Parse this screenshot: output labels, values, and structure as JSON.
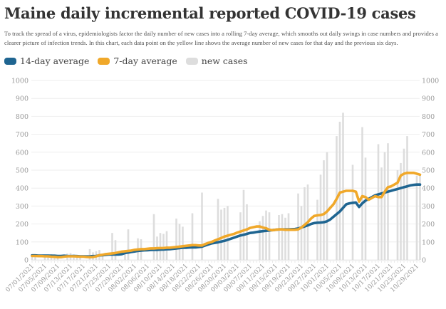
{
  "chart_data": {
    "type": "line",
    "title": "Maine daily incremental reported COVID-19 cases",
    "subtitle": "To track the spread of a virus, epidemiologists factor the daily number of new cases into a rolling 7-day average, which smooths out daily swings in case numbers and provides a clearer picture of infection trends. In this chart, each data point on the yellow line shows the average number of new cases for that day and the previous six days.",
    "xlabel": "",
    "ylabel": "",
    "ylim": [
      0,
      1000
    ],
    "yticks": [
      0,
      100,
      200,
      300,
      400,
      500,
      600,
      700,
      800,
      900,
      1000
    ],
    "grid": true,
    "legend_position": "top-left",
    "x_start": "07/01/2021",
    "x_end": "10/30/2021",
    "xtick_labels": [
      "07/01/2021",
      "07/05/2021",
      "07/09/2021",
      "07/13/2021",
      "07/17/2021",
      "07/21/2021",
      "07/25/2021",
      "07/29/2021",
      "08/02/2021",
      "08/06/2021",
      "08/10/2021",
      "08/14/2021",
      "08/18/2021",
      "08/22/2021",
      "08/26/2021",
      "08/30/2021",
      "09/03/2021",
      "09/07/2021",
      "09/11/2021",
      "09/15/2021",
      "09/19/2021",
      "09/23/2021",
      "09/27/2021",
      "10/01/2021",
      "10/05/2021",
      "10/09/2021",
      "10/13/2021",
      "10/17/2021",
      "10/21/2021",
      "10/25/2021",
      "10/29/2021"
    ],
    "series": [
      {
        "name": "14-day average",
        "color": "#1f6591",
        "kind": "line",
        "values": [
          25,
          25,
          24,
          24,
          24,
          24,
          23,
          23,
          22,
          22,
          23,
          22,
          21,
          22,
          21,
          20,
          20,
          19,
          20,
          21,
          22,
          25,
          26,
          28,
          30,
          30,
          30,
          30,
          32,
          38,
          41,
          44,
          47,
          50,
          52,
          53,
          54,
          55,
          56,
          56,
          57,
          58,
          59,
          60,
          62,
          64,
          66,
          68,
          68,
          69,
          70,
          70,
          72,
          74,
          80,
          86,
          92,
          95,
          98,
          102,
          106,
          112,
          118,
          124,
          130,
          136,
          140,
          145,
          150,
          152,
          155,
          158,
          160,
          162,
          164,
          166,
          168,
          170,
          170,
          170,
          170,
          171,
          172,
          175,
          180,
          186,
          192,
          200,
          205,
          207,
          208,
          210,
          215,
          225,
          240,
          255,
          270,
          290,
          310,
          315,
          318,
          320,
          295,
          315,
          330,
          340,
          350,
          360,
          365,
          370,
          375,
          380,
          385,
          390,
          395,
          400,
          405,
          410,
          415,
          418,
          420,
          420
        ]
      },
      {
        "name": "7-day average",
        "color": "#f0a82a",
        "kind": "line",
        "values": [
          22,
          22,
          21,
          21,
          20,
          20,
          18,
          17,
          15,
          15,
          18,
          20,
          20,
          20,
          19,
          18,
          18,
          16,
          15,
          16,
          20,
          26,
          28,
          32,
          34,
          36,
          38,
          42,
          46,
          48,
          50,
          52,
          56,
          58,
          60,
          60,
          62,
          64,
          64,
          65,
          66,
          66,
          68,
          68,
          70,
          72,
          74,
          76,
          78,
          80,
          82,
          82,
          80,
          80,
          88,
          95,
          100,
          108,
          115,
          122,
          130,
          135,
          140,
          145,
          152,
          158,
          164,
          170,
          178,
          182,
          186,
          186,
          180,
          176,
          168,
          165,
          168,
          170,
          170,
          168,
          168,
          168,
          168,
          170,
          180,
          195,
          210,
          230,
          245,
          248,
          250,
          255,
          270,
          290,
          310,
          340,
          375,
          380,
          385,
          385,
          385,
          380,
          325,
          355,
          350,
          335,
          345,
          355,
          350,
          350,
          380,
          405,
          410,
          420,
          430,
          470,
          480,
          485,
          485,
          485,
          480,
          475
        ]
      },
      {
        "name": "new cases",
        "color": "#dddddd",
        "kind": "bar",
        "values": [
          30,
          28,
          0,
          0,
          25,
          30,
          32,
          26,
          28,
          0,
          0,
          35,
          38,
          30,
          28,
          22,
          0,
          0,
          60,
          42,
          48,
          55,
          35,
          0,
          0,
          150,
          110,
          0,
          0,
          45,
          170,
          0,
          0,
          120,
          115,
          0,
          0,
          0,
          255,
          130,
          150,
          145,
          160,
          0,
          0,
          230,
          200,
          185,
          0,
          0,
          260,
          0,
          0,
          375,
          0,
          0,
          0,
          0,
          340,
          280,
          290,
          300,
          0,
          0,
          0,
          265,
          390,
          310,
          0,
          0,
          0,
          215,
          245,
          275,
          265,
          0,
          0,
          250,
          255,
          235,
          260,
          0,
          0,
          370,
          300,
          405,
          420,
          0,
          0,
          335,
          475,
          555,
          600,
          0,
          0,
          690,
          770,
          820,
          0,
          0,
          530,
          0,
          0,
          740,
          570,
          0,
          0,
          0,
          645,
          515,
          600,
          650,
          0,
          0,
          500,
          540,
          620,
          690,
          0,
          0,
          470,
          480
        ]
      }
    ]
  }
}
